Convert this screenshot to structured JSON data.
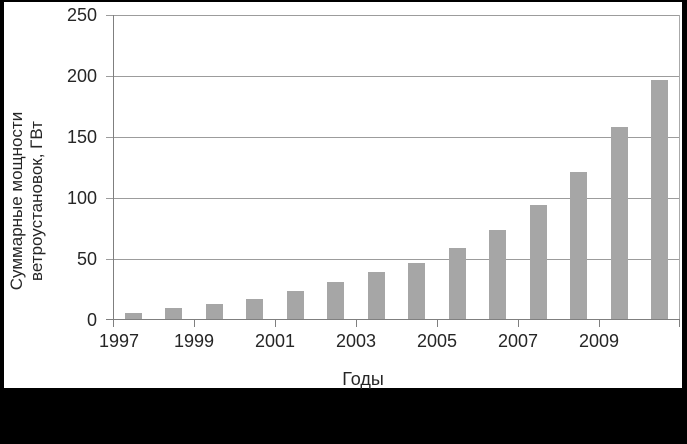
{
  "page": {
    "background_color": "#000000",
    "panel_color": "#ffffff"
  },
  "chart_data": {
    "type": "bar",
    "title": "",
    "xlabel": "Годы",
    "ylabel": "Суммарные мощности ветроустановок, ГВт",
    "ylabel_lines": [
      "Суммарные мощности",
      "ветроустановок, ГВт"
    ],
    "categories": [
      1997,
      1998,
      1999,
      2000,
      2001,
      2002,
      2003,
      2004,
      2005,
      2006,
      2007,
      2008,
      2009,
      2010
    ],
    "values": [
      6,
      10,
      13,
      17,
      24,
      31,
      39,
      47,
      59,
      74,
      94,
      121,
      158,
      197
    ],
    "x_tick_labels": [
      "1997",
      "1999",
      "2001",
      "2003",
      "2005",
      "2007",
      "2009"
    ],
    "y_tick_labels": [
      "0",
      "50",
      "100",
      "150",
      "200",
      "250"
    ],
    "ylim": [
      0,
      250
    ],
    "grid": "horizontal",
    "legend": "none",
    "bar_color": "#a6a6a6",
    "grid_color": "#9c9c9c",
    "axis_color": "#7f7f7f",
    "text_color": "#262626"
  }
}
